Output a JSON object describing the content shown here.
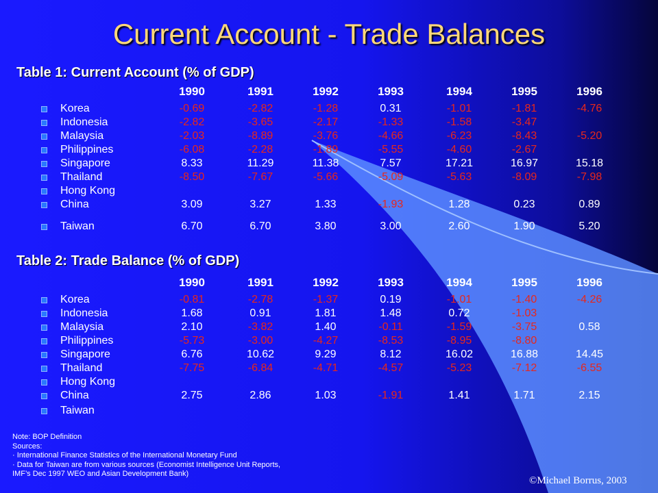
{
  "title": "Current Account - Trade Balances",
  "table1": {
    "title": "Table 1: Current Account (% of GDP)",
    "years": [
      "1990",
      "1991",
      "1992",
      "1993",
      "1994",
      "1995",
      "1996"
    ],
    "rows": [
      {
        "country": "Korea",
        "values": [
          "-0.69",
          "-2.82",
          "-1.28",
          "0.31",
          "-1.01",
          "-1.81",
          "-4.76"
        ]
      },
      {
        "country": "Indonesia",
        "values": [
          "-2.82",
          "-3.65",
          "-2.17",
          "-1.33",
          "-1.58",
          "-3.47",
          ""
        ]
      },
      {
        "country": "Malaysia",
        "values": [
          "-2.03",
          "-8.89",
          "-3.76",
          "-4.66",
          "-6.23",
          "-8.43",
          "-5.20"
        ]
      },
      {
        "country": "Philippines",
        "values": [
          "-6.08",
          "-2.28",
          "-1.89",
          "-5.55",
          "-4.60",
          "-2.67",
          ""
        ]
      },
      {
        "country": "Singapore",
        "values": [
          "8.33",
          "11.29",
          "11.38",
          "7.57",
          "17.21",
          "16.97",
          "15.18"
        ]
      },
      {
        "country": "Thailand",
        "values": [
          "-8.50",
          "-7.67",
          "-5.66",
          "-5.09",
          "-5.63",
          "-8.09",
          "-7.98"
        ]
      },
      {
        "country": "Hong Kong",
        "values": [
          "",
          "",
          "",
          "",
          "",
          "",
          ""
        ]
      },
      {
        "country": "China",
        "values": [
          "3.09",
          "3.27",
          "1.33",
          "-1.93",
          "1.28",
          "0.23",
          "0.89"
        ]
      },
      {
        "country": "Taiwan",
        "values": [
          "6.70",
          "6.70",
          "3.80",
          "3.00",
          "2.60",
          "1.90",
          "5.20"
        ]
      }
    ]
  },
  "table2": {
    "title": "Table 2: Trade Balance (% of GDP)",
    "years": [
      "1990",
      "1991",
      "1992",
      "1993",
      "1994",
      "1995",
      "1996"
    ],
    "rows": [
      {
        "country": "Korea",
        "values": [
          "-0.81",
          "-2.78",
          "-1.37",
          "0.19",
          "-1.01",
          "-1.40",
          "-4.26"
        ]
      },
      {
        "country": "Indonesia",
        "values": [
          "1.68",
          "0.91",
          "1.81",
          "1.48",
          "0.72",
          "-1.03",
          ""
        ]
      },
      {
        "country": "Malaysia",
        "values": [
          "2.10",
          "-3.82",
          "1.40",
          "-0.11",
          "-1.59",
          "-3.75",
          "0.58"
        ]
      },
      {
        "country": "Philippines",
        "values": [
          "-5.73",
          "-3.00",
          "-4.27",
          "-8.53",
          "-8.95",
          "-8.80",
          ""
        ]
      },
      {
        "country": "Singapore",
        "values": [
          "6.76",
          "10.62",
          "9.29",
          "8.12",
          "16.02",
          "16.88",
          "14.45"
        ]
      },
      {
        "country": "Thailand",
        "values": [
          "-7.75",
          "-6.84",
          "-4.71",
          "-4.57",
          "-5.23",
          "-7.12",
          "-6.55"
        ]
      },
      {
        "country": "Hong Kong",
        "values": [
          "",
          "",
          "",
          "",
          "",
          "",
          ""
        ]
      },
      {
        "country": "China",
        "values": [
          "2.75",
          "2.86",
          "1.03",
          "-1.91",
          "1.41",
          "1.71",
          "2.15"
        ]
      },
      {
        "country": "Taiwan",
        "values": [
          "",
          "",
          "",
          "",
          "",
          "",
          ""
        ]
      }
    ]
  },
  "notes": [
    "Note: BOP Definition",
    "Sources:",
    "· International Finance Statistics of the International Monetary Fund",
    "· Data for Taiwan are from various sources (Economist Intelligence Unit Reports,",
    "  IMF’s Dec 1997 WEO and Asian Development Bank)"
  ],
  "copyright": "©Michael Borrus, 2003",
  "colors": {
    "negative": "#e8271b",
    "positive": "#ffffff",
    "title": "#ffd87a",
    "background": "#1a1aff"
  }
}
